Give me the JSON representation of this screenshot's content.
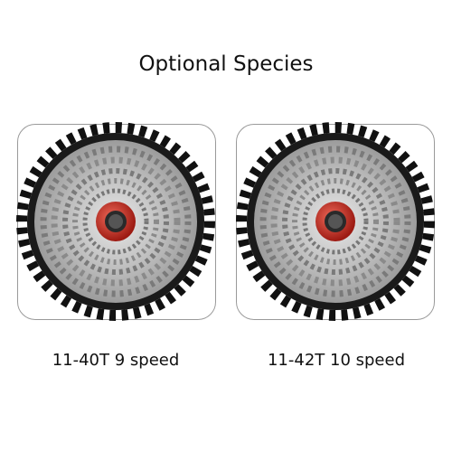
{
  "header": {
    "title": "Optional Species"
  },
  "products": [
    {
      "label": "11-40T 9 speed"
    },
    {
      "label": "11-42T 10 speed"
    }
  ]
}
